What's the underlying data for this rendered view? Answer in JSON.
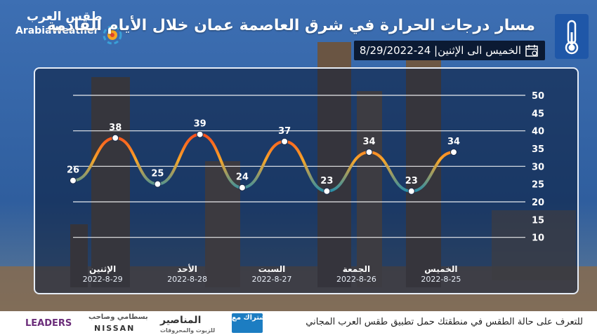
{
  "header": {
    "logo_ar": "طقس العرب",
    "logo_en": "ArabiaWeather",
    "title": "مسار درجات الحرارة في شرق العاصمة عمان خلال الأيام القادمة",
    "date_range": "الخميس الى الإثنين| 24-8/29/2022"
  },
  "chart_data": {
    "type": "line",
    "ylim": [
      5,
      50
    ],
    "y_ticks": [
      10,
      15,
      20,
      25,
      30,
      35,
      40,
      45,
      50
    ],
    "gridlines_at": [
      10,
      20,
      30,
      40,
      50
    ],
    "days": [
      {
        "name": "الإثنين",
        "date": "2022-8-29"
      },
      {
        "name": "الأحد",
        "date": "2022-8-28"
      },
      {
        "name": "السبت",
        "date": "2022-8-27"
      },
      {
        "name": "الجمعة",
        "date": "2022-8-26"
      },
      {
        "name": "الخميس",
        "date": "2022-8-25"
      }
    ],
    "series": [
      {
        "values": [
          26,
          38,
          25,
          39,
          24,
          37,
          23,
          34,
          23,
          34
        ]
      }
    ],
    "colors": {
      "high": "#ff5a1f",
      "mid": "#f5a623",
      "low": "#2b8fa8"
    }
  },
  "footer": {
    "cta": "للتعرف على حالة الطقس في منطقتك حمل تطبيق طقس العرب المجاني",
    "sponsors": {
      "leaders": "LEADERS",
      "nissan_ar": "بسطامي وصاحب",
      "nissan": "NISSAN",
      "manasir": "المناصير",
      "manasir_sub": "للزيوت والمحروقات",
      "partner": "بالإشتراك مع"
    }
  }
}
